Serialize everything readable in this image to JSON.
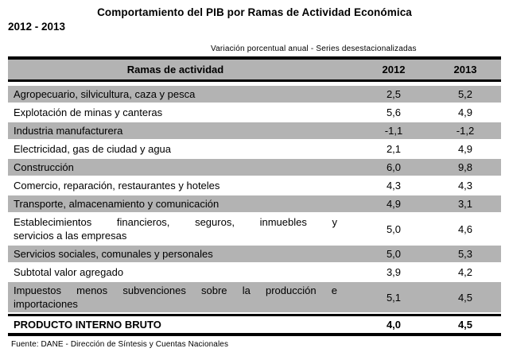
{
  "title": {
    "line1": "Comportamiento del PIB por Ramas de Actividad Económica",
    "line2": "2012 - 2013"
  },
  "subtitle": "Variación porcentual anual - Series desestacionalizadas",
  "source": "Fuente: DANE - Dirección de Síntesis y Cuentas Nacionales",
  "colors": {
    "row_gray": "#b3b3b3",
    "header_gray": "#b3b3b3",
    "rule_black": "#000000"
  },
  "chart_data": {
    "type": "table",
    "title": "Comportamiento del PIB por Ramas de Actividad Económica 2012 - 2013",
    "subtitle": "Variación porcentual anual - Series desestacionalizadas",
    "columns": [
      "Ramas de actividad",
      "2012",
      "2013"
    ],
    "rows": [
      {
        "label": "Agropecuario, silvicultura, caza y pesca",
        "y2012": "2,5",
        "y2013": "5,2"
      },
      {
        "label": "Explotación de minas y canteras",
        "y2012": "5,6",
        "y2013": "4,9"
      },
      {
        "label": "Industria manufacturera",
        "y2012": "-1,1",
        "y2013": "-1,2"
      },
      {
        "label": "Electricidad, gas de ciudad y agua",
        "y2012": "2,1",
        "y2013": "4,9"
      },
      {
        "label": "Construcción",
        "y2012": "6,0",
        "y2013": "9,8"
      },
      {
        "label": "Comercio, reparación, restaurantes y hoteles",
        "y2012": "4,3",
        "y2013": "4,3"
      },
      {
        "label": "Transporte, almacenamiento y comunicación",
        "y2012": "4,9",
        "y2013": "3,1"
      },
      {
        "label": "Establecimientos financieros, seguros, inmuebles y servicios a las empresas",
        "label_line1": "Establecimientos financieros, seguros, inmuebles y",
        "label_line2": "servicios a las empresas",
        "y2012": "5,0",
        "y2013": "4,6"
      },
      {
        "label": "Servicios sociales, comunales y personales",
        "y2012": "5,0",
        "y2013": "5,3"
      },
      {
        "label": "Subtotal valor agregado",
        "y2012": "3,9",
        "y2013": "4,2"
      },
      {
        "label": "Impuestos menos subvenciones sobre la producción e importaciones",
        "label_line1": "Impuestos menos subvenciones sobre la producción e",
        "label_line2": "importaciones",
        "y2012": "5,1",
        "y2013": "4,5"
      },
      {
        "label": "PRODUCTO INTERNO BRUTO",
        "y2012": "4,0",
        "y2013": "4,5"
      }
    ],
    "source": "Fuente: DANE - Dirección de Síntesis y Cuentas Nacionales"
  }
}
